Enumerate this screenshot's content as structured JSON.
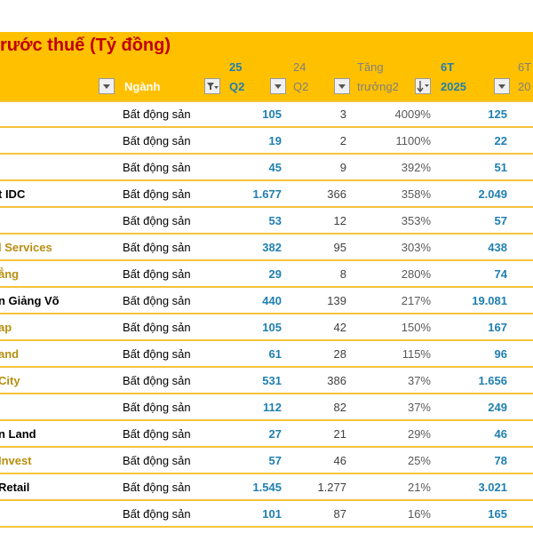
{
  "header": {
    "title": "rước thuế (Tỷ đồng)",
    "col_sector": "Ngành",
    "col_q2_2025_top": "25",
    "col_q2_2025_bot": "Q2",
    "col_q2_2024_top": "24",
    "col_q2_2024_bot": "Q2",
    "col_growth_top": "Tăng",
    "col_growth_bot": "trưởng2",
    "col_6t2025_top": "6T",
    "col_6t2025_bot": "2025",
    "col_6t2024_top": "6T",
    "col_6t2024_bot": "20"
  },
  "colors": {
    "header_bg": "#ffc000",
    "title": "#c00000",
    "value_blue": "#1f7fb0",
    "row_border": "#f5c33b",
    "gold_text": "#b68f10"
  },
  "rows": [
    {
      "name": "",
      "sector": "Bất động sản",
      "q2_2025": "105",
      "q2_2024": "3",
      "growth": "4009%",
      "h1_2025": "125"
    },
    {
      "name": "",
      "sector": "Bất động sản",
      "q2_2025": "19",
      "q2_2024": "2",
      "growth": "1100%",
      "h1_2025": "22"
    },
    {
      "name": "",
      "sector": "Bất động sản",
      "q2_2025": "45",
      "q2_2024": "9",
      "growth": "392%",
      "h1_2025": "51"
    },
    {
      "name": "t IDC",
      "sector": "Bất động sản",
      "q2_2025": "1.677",
      "q2_2024": "366",
      "growth": "358%",
      "h1_2025": "2.049"
    },
    {
      "name": "",
      "sector": "Bất động sản",
      "q2_2025": "53",
      "q2_2024": "12",
      "growth": "353%",
      "h1_2025": "57"
    },
    {
      "name": "l Services",
      "sector": "Bất động sản",
      "q2_2025": "382",
      "q2_2024": "95",
      "growth": "303%",
      "h1_2025": "438"
    },
    {
      "name": "ẳng",
      "sector": "Bất động sản",
      "q2_2025": "29",
      "q2_2024": "8",
      "growth": "280%",
      "h1_2025": "74"
    },
    {
      "name": "n Giảng Võ",
      "sector": "Bất động sản",
      "q2_2025": "440",
      "q2_2024": "139",
      "growth": "217%",
      "h1_2025": "19.081"
    },
    {
      "name": "ap",
      "sector": "Bất động sản",
      "q2_2025": "105",
      "q2_2024": "42",
      "growth": "150%",
      "h1_2025": "167"
    },
    {
      "name": "and",
      "sector": "Bất động sản",
      "q2_2025": "61",
      "q2_2024": "28",
      "growth": "115%",
      "h1_2025": "96"
    },
    {
      "name": "City",
      "sector": "Bất động sản",
      "q2_2025": "531",
      "q2_2024": "386",
      "growth": "37%",
      "h1_2025": "1.656"
    },
    {
      "name": "",
      "sector": "Bất động sản",
      "q2_2025": "112",
      "q2_2024": "82",
      "growth": "37%",
      "h1_2025": "249"
    },
    {
      "name": "n Land",
      "sector": "Bất động sản",
      "q2_2025": "27",
      "q2_2024": "21",
      "growth": "29%",
      "h1_2025": "46"
    },
    {
      "name": "Invest",
      "sector": "Bất động sản",
      "q2_2025": "57",
      "q2_2024": "46",
      "growth": "25%",
      "h1_2025": "78"
    },
    {
      "name": "Retail",
      "sector": "Bất động sản",
      "q2_2025": "1.545",
      "q2_2024": "1.277",
      "growth": "21%",
      "h1_2025": "3.021"
    },
    {
      "name": "",
      "sector": "Bất động sản",
      "q2_2025": "101",
      "q2_2024": "87",
      "growth": "16%",
      "h1_2025": "165"
    }
  ]
}
